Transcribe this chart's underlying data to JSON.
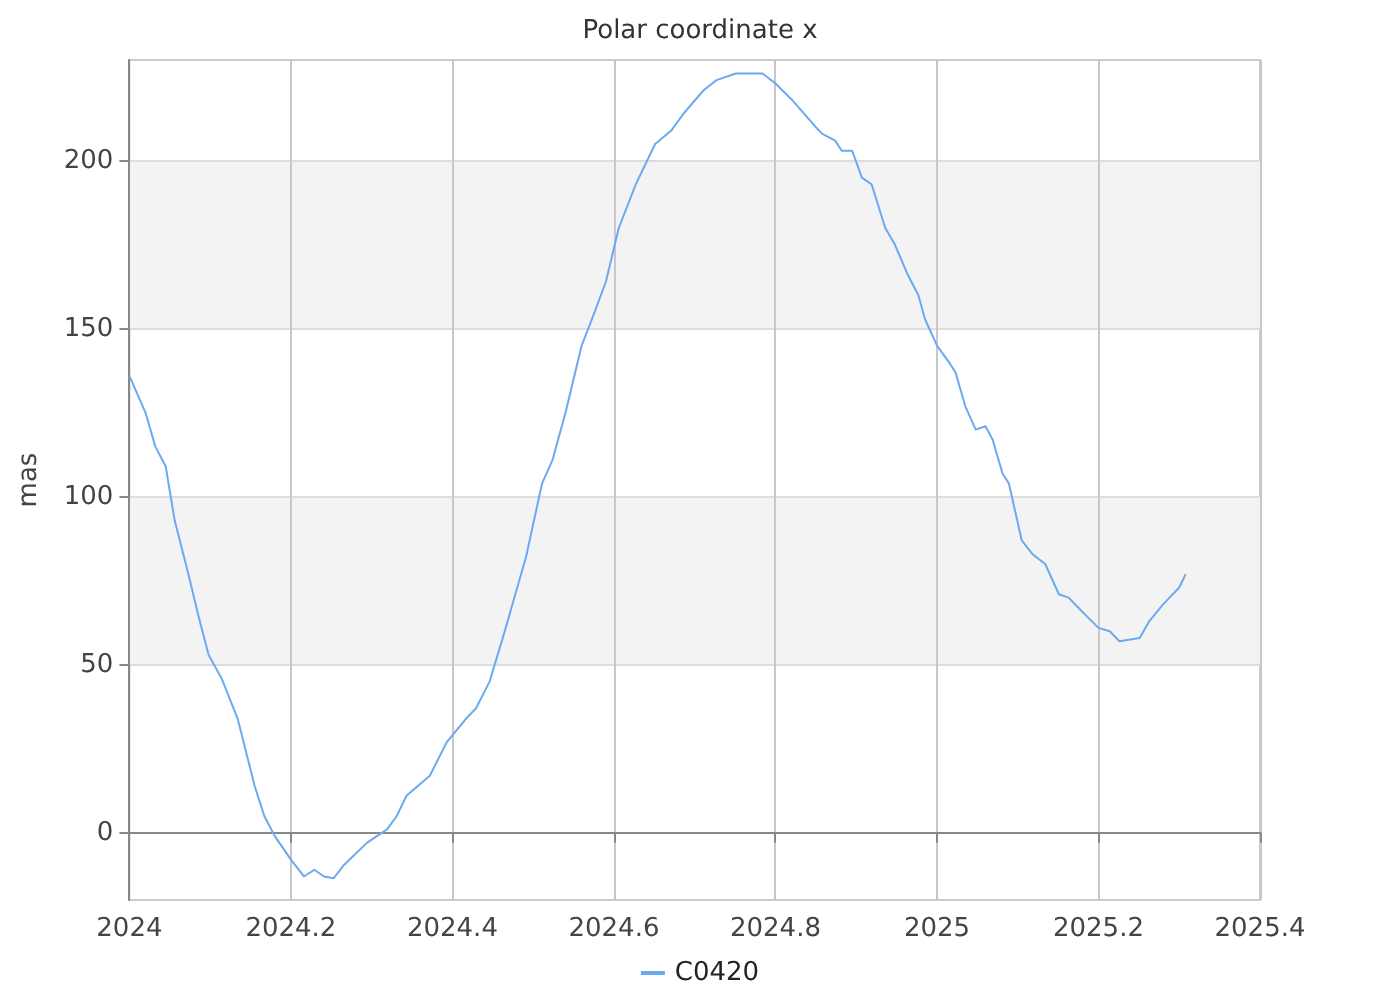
{
  "chart_data": {
    "type": "line",
    "title": "Polar coordinate x",
    "ylabel": "mas",
    "x": [
      2024.0,
      2024.02,
      2024.032,
      2024.045,
      2024.056,
      2024.073,
      2024.085,
      2024.098,
      2024.114,
      2024.134,
      2024.155,
      2024.167,
      2024.18,
      2024.2,
      2024.216,
      2024.229,
      2024.241,
      2024.253,
      2024.266,
      2024.294,
      2024.319,
      2024.331,
      2024.343,
      2024.372,
      2024.393,
      2024.417,
      2024.429,
      2024.446,
      2024.466,
      2024.491,
      2024.511,
      2024.524,
      2024.54,
      2024.56,
      2024.573,
      2024.59,
      2024.606,
      2024.627,
      2024.651,
      2024.671,
      2024.686,
      2024.711,
      2024.727,
      2024.751,
      2024.768,
      2024.784,
      2024.8,
      2024.821,
      2024.85,
      2024.858,
      2024.874,
      2024.882,
      2024.895,
      2024.907,
      2024.919,
      2024.936,
      2024.948,
      2024.964,
      2024.977,
      2024.985,
      2025.0,
      2025.015,
      2025.023,
      2025.035,
      2025.048,
      2025.06,
      2025.069,
      2025.081,
      2025.089,
      2025.105,
      2025.118,
      2025.134,
      2025.151,
      2025.163,
      2025.179,
      2025.2,
      2025.214,
      2025.226,
      2025.251,
      2025.263,
      2025.28,
      2025.3,
      2025.308
    ],
    "series": [
      {
        "name": "C0420",
        "color": "#6aaaf0",
        "values": [
          136,
          125,
          115,
          109,
          93,
          77,
          65,
          53,
          46,
          34,
          14,
          5,
          -1,
          -8,
          -13,
          -11,
          -13,
          -13.5,
          -9.5,
          -3,
          1,
          5,
          11,
          17,
          27,
          34,
          37,
          45,
          61,
          82,
          104,
          111,
          125,
          145,
          153,
          164,
          180,
          193,
          205,
          209,
          214,
          221,
          224,
          226,
          226,
          226,
          223,
          218,
          210,
          208,
          206,
          203,
          203,
          195,
          193,
          180,
          175,
          166,
          160,
          153,
          145,
          140,
          137,
          127,
          120,
          121,
          117,
          107,
          104,
          87,
          83,
          80,
          71,
          70,
          66,
          61,
          60,
          57,
          58,
          63,
          68,
          73,
          77
        ]
      }
    ],
    "xlim": [
      2024,
      2025.4
    ],
    "xticks": [
      2024,
      2024.2,
      2024.4,
      2024.6,
      2024.8,
      2025,
      2025.2,
      2025.4
    ],
    "ylim": [
      -20,
      230
    ],
    "yticks": [
      0,
      50,
      100,
      150,
      200
    ],
    "grid": true,
    "legend": "bottom",
    "marker": "none",
    "line_style": "solid"
  }
}
